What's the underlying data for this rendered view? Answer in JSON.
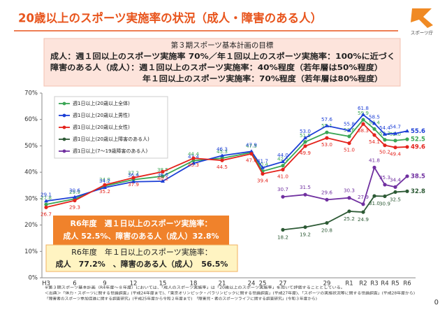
{
  "header": {
    "title": "20歳以上のスポーツ実施率の状況（成人・障害のある人）",
    "logo_text": "スポーツ庁"
  },
  "goal_box": {
    "title": "第３期スポーツ基本計画の目標",
    "lines": [
      "成人：週１回以上のスポーツ実施率 70%／年１回以上のスポーツ実施率：100%に近づく",
      "障害のある人（成人）：週１回以上のスポーツ実施率：40%程度（若年層は50%程度）",
      "年１回以上のスポーツ実施率：70%程度（若年層は80%程度）"
    ]
  },
  "chart_data": {
    "type": "line",
    "categories": [
      "H3",
      "6",
      "9",
      "12",
      "15",
      "18",
      "21",
      "24",
      "25",
      "27",
      null,
      "29",
      "R1",
      "R2",
      "R3",
      "R4",
      "R5",
      "R6"
    ],
    "ylim": [
      0,
      70
    ],
    "yticks": [
      {
        "value": 0,
        "label": "0%"
      },
      {
        "value": 10,
        "label": "10%"
      },
      {
        "value": 20,
        "label": "20%"
      },
      {
        "value": 30,
        "label": "30%"
      },
      {
        "value": 40,
        "label": "40%"
      },
      {
        "value": 50,
        "label": "50%"
      },
      {
        "value": 60,
        "label": "60%"
      },
      {
        "value": 70,
        "label": "70%"
      }
    ],
    "grid": false,
    "legend": "upper left",
    "series": [
      {
        "name": "週1日以上(20歳以上全体)",
        "color": "#3aa655",
        "values": [
          27.8,
          29.9,
          34.8,
          37.2,
          38.5,
          44.4,
          45.3,
          47.5,
          40.4,
          42.5,
          51.5,
          55.1,
          53.6,
          59.9,
          56.4,
          52.3,
          52.0,
          52.5
        ],
        "value_labels": [
          "27.8",
          "29.9",
          "34.8",
          "37.2",
          "38.5",
          "44.4",
          "45.3",
          "47.5",
          "40.4",
          "42.5",
          "51.5",
          "55.1",
          "53.6",
          "59.9",
          "56.4",
          "52.3",
          "52.0",
          "52.5"
        ]
      },
      {
        "name": "週1日以上(20歳以上男性)",
        "color": "#1c3fd6",
        "values": [
          29.1,
          30.6,
          34.2,
          36.4,
          36.6,
          43.4,
          46.3,
          47.9,
          41.7,
          44.0,
          53.0,
          57.6,
          55.8,
          61.8,
          58.5,
          54.4,
          54.7,
          55.6
        ],
        "value_labels": [
          "29.1",
          "30.6",
          "34.2",
          "36.4",
          "36.6",
          "43.4",
          "46.3",
          "47.9",
          "41.7",
          "44.0",
          "53.0",
          "57.6",
          "55.8",
          "61.8",
          "58.5",
          "54.4",
          "54.7",
          "55.6"
        ]
      },
      {
        "name": "週1日以上(20歳以上女性)",
        "color": "#e4231c",
        "values": [
          26.7,
          29.3,
          35.2,
          37.9,
          40.2,
          45.3,
          44.5,
          47.0,
          39.4,
          41.0,
          49.9,
          53.0,
          51.0,
          58.3,
          54.1,
          50.2,
          49.4,
          49.6
        ],
        "value_labels": [
          "26.7",
          "29.3",
          "35.2",
          "37.9",
          "40.2",
          "45.3",
          "44.5",
          "47.0",
          "39.4",
          "41.0",
          "49.9",
          "53.0",
          "51.0",
          "58.3",
          "54.1",
          "50.2",
          "49.4",
          "49.6"
        ]
      },
      {
        "name": "週1日以上(20歳以上障害のある人)",
        "color": "#2d5a35",
        "values": [
          null,
          null,
          null,
          null,
          null,
          null,
          null,
          null,
          null,
          18.2,
          19.2,
          20.8,
          25.2,
          24.9,
          31.0,
          30.9,
          32.5,
          32.8
        ],
        "value_labels": [
          null,
          null,
          null,
          null,
          null,
          null,
          null,
          null,
          null,
          "18.2",
          "19.2",
          "20.8",
          "25.2",
          "24.9",
          "31.0",
          "30.9",
          "32.5",
          "32.8"
        ]
      },
      {
        "name": "週1日以上(7～19歳障害のある人)",
        "color": "#7030a0",
        "values": [
          null,
          null,
          null,
          null,
          null,
          null,
          null,
          null,
          null,
          30.7,
          31.5,
          29.6,
          30.3,
          27.9,
          41.8,
          35.3,
          34.4,
          38.5
        ],
        "value_labels": [
          null,
          null,
          null,
          null,
          null,
          null,
          null,
          null,
          null,
          "30.7",
          "31.5",
          "29.6",
          "30.3",
          "27.9",
          "41.8",
          "35.3",
          "34.4",
          "38.5"
        ]
      }
    ]
  },
  "callouts": [
    {
      "lines": [
        "R6年度　週１日以上のスポーツ実施率：",
        "成人 52.5%、障害のある人（成人）32.8%"
      ]
    },
    {
      "lines": [
        "R6年度　年１日以上のスポーツ実施率：",
        "成人　77.2%　、障害のある人（成人）　56.5%"
      ]
    }
  ],
  "footnotes": [
    "※第３期スポーツ基本計画（R4年度～８年度）においては、「成人のスポーツ実施率」は「20歳以上のスポーツ実施率」を用いて評価することとしている。",
    "＜出典＞「体力・スポーツに関する世論調査」(平成24年度まで)、「東京オリンピック・パラリンピックに関する世論調査」(平成27年度)、「スポーツの実施状況等に関する世論調査」(平成28年度から)",
    "「障害者のスポーツ参加促進に関する調査研究」(平成25年度から令和２年度まで)　「障害児・者のスポーツライフに関する調査研究」(令和３年度から)"
  ],
  "page_number": "0"
}
